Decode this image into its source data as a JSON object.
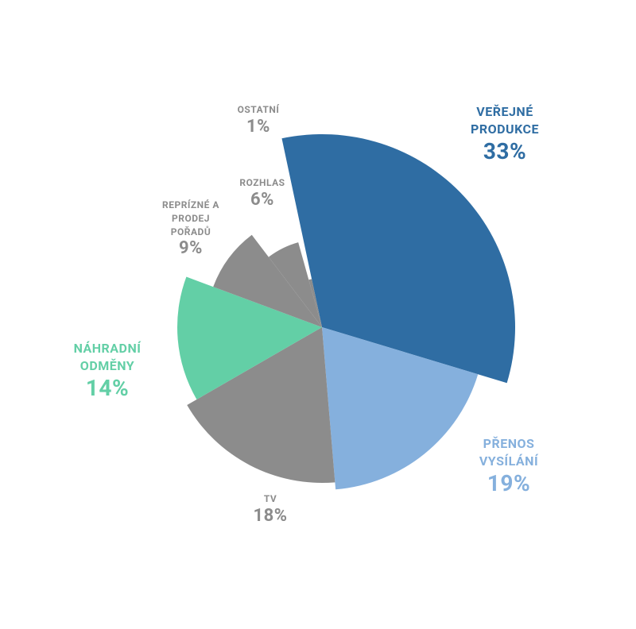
{
  "chart_data": {
    "type": "pie",
    "categories": [
      "VEŘEJNÉ PRODUKCE",
      "PŘENOS VYSÍLÁNÍ",
      "TV",
      "NÁHRADNÍ ODMĚNY",
      "REPRÍZNÉ A PRODEJ POŘADŮ",
      "ROZHLAS",
      "OSTATNÍ"
    ],
    "values": [
      33,
      19,
      18,
      14,
      9,
      6,
      1
    ],
    "value_labels": [
      "33%",
      "19%",
      "18%",
      "14%",
      "9%",
      "6%",
      "1%"
    ],
    "colors": [
      "#2f6da3",
      "#85b0dd",
      "#8c8c8c",
      "#63cfa6",
      "#8c8c8c",
      "#8c8c8c",
      "#8c8c8c"
    ]
  }
}
